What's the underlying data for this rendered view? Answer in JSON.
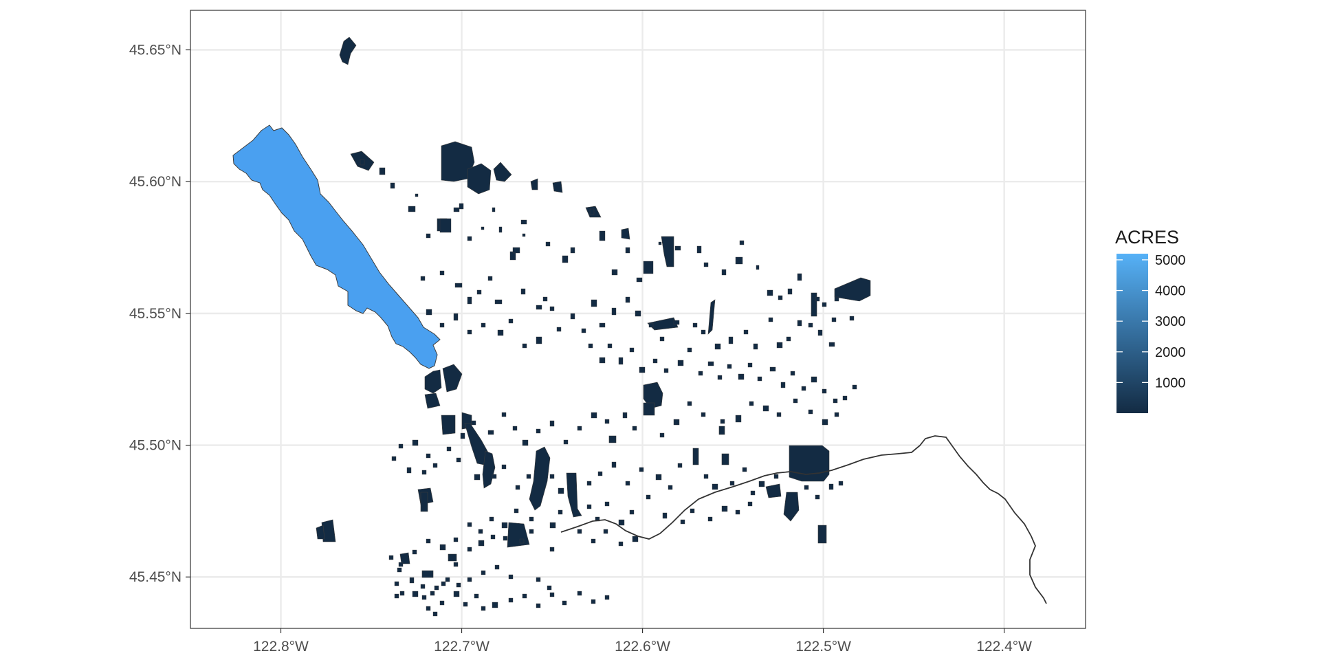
{
  "chart_data": {
    "type": "choropleth-map",
    "title": "",
    "xlabel": "",
    "ylabel": "",
    "x_range": [
      -122.85,
      -122.355
    ],
    "y_range": [
      45.4305,
      45.665
    ],
    "x_ticks": [
      {
        "value": -122.8,
        "label": "122.8°W"
      },
      {
        "value": -122.7,
        "label": "122.7°W"
      },
      {
        "value": -122.6,
        "label": "122.6°W"
      },
      {
        "value": -122.5,
        "label": "122.5°W"
      },
      {
        "value": -122.4,
        "label": "122.4°W"
      }
    ],
    "y_ticks": [
      {
        "value": 45.45,
        "label": "45.45°N"
      },
      {
        "value": 45.5,
        "label": "45.50°N"
      },
      {
        "value": 45.55,
        "label": "45.55°N"
      },
      {
        "value": 45.6,
        "label": "45.60°N"
      },
      {
        "value": 45.65,
        "label": "45.65°N"
      }
    ],
    "grid": true,
    "legend": {
      "title": "ACRES",
      "position": "right",
      "min": 0,
      "max": 5200,
      "low_color": "#132B43",
      "high_color": "#56B1F7",
      "breaks": [
        {
          "value": 5000,
          "label": "5000"
        },
        {
          "value": 4000,
          "label": "4000"
        },
        {
          "value": 3000,
          "label": "3000"
        },
        {
          "value": 2000,
          "label": "2000"
        },
        {
          "value": 1000,
          "label": "1000"
        }
      ]
    },
    "colors": {
      "panel_border": "#333333",
      "grid": "#ebebeb",
      "feature_outline": "#3d3d3d",
      "line_feature": "#333333"
    }
  }
}
